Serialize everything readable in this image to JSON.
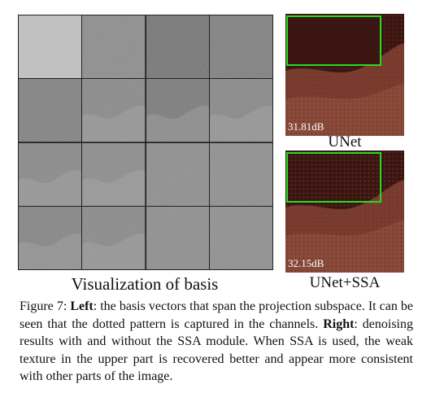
{
  "left_panel": {
    "caption": "Visualization of basis",
    "tiles": [
      {
        "base": "#c4c4c4",
        "noise": 0.15,
        "texture": false
      },
      {
        "base": "#9c9c9c",
        "noise": 0.55,
        "texture": false
      },
      {
        "base": "#8e8e8e",
        "noise": 1.0,
        "texture": false
      },
      {
        "base": "#939393",
        "noise": 0.75,
        "texture": false
      },
      {
        "base": "#929292",
        "noise": 0.6,
        "texture": false
      },
      {
        "base": "#979797",
        "noise": 0.45,
        "texture": true
      },
      {
        "base": "#8a8a8a",
        "noise": 0.45,
        "texture": true
      },
      {
        "base": "#959595",
        "noise": 0.4,
        "texture": true
      },
      {
        "base": "#979797",
        "noise": 0.45,
        "texture": true
      },
      {
        "base": "#999999",
        "noise": 0.4,
        "texture": true
      },
      {
        "base": "#9a9a9a",
        "noise": 0.35,
        "texture": false
      },
      {
        "base": "#9b9b9b",
        "noise": 0.35,
        "texture": false
      },
      {
        "base": "#939393",
        "noise": 0.45,
        "texture": true
      },
      {
        "base": "#979797",
        "noise": 0.45,
        "texture": true
      },
      {
        "base": "#9a9a9a",
        "noise": 0.35,
        "texture": false
      },
      {
        "base": "#9b9b9b",
        "noise": 0.35,
        "texture": false
      }
    ]
  },
  "right_panel": {
    "unet": {
      "psnr": "31.81dB",
      "label": "UNet"
    },
    "unet_ssa": {
      "psnr": "32.15dB",
      "label": "UNet+SSA"
    },
    "highlight_color": "#22dd22",
    "image_dark": "#3a1512",
    "image_light": "#8a4a3a"
  },
  "figure_caption": {
    "label": "Figure 7: ",
    "left_bold": "Left",
    "part1": ": the basis vectors that span the projection subspace. It can be seen that the dotted pattern is captured in the channels. ",
    "right_bold": "Right",
    "part2": ": denoising results with and without the SSA module. When SSA is used, the weak texture in the upper part is recovered better and appear more consistent with other parts of the image."
  }
}
